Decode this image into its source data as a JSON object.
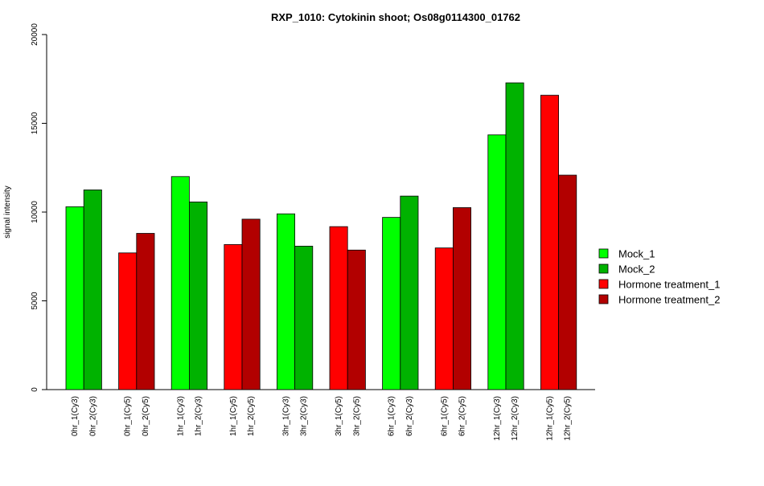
{
  "chart_data": {
    "type": "bar",
    "title": "RXP_1010: Cytokinin shoot; Os08g0114300_01762",
    "xlabel": "",
    "ylabel": "signal intensity",
    "ylim": [
      0,
      20000
    ],
    "yticks": [
      0,
      5000,
      10000,
      15000,
      20000
    ],
    "grid": false,
    "legend_position": "right",
    "legend": [
      {
        "label": "Mock_1",
        "color": "#00ff00"
      },
      {
        "label": "Mock_2",
        "color": "#00b200"
      },
      {
        "label": "Hormone treatment_1",
        "color": "#ff0000"
      },
      {
        "label": "Hormone treatment_2",
        "color": "#b20000"
      }
    ],
    "bars": [
      {
        "label": "0hr_1(Cy3)",
        "value": 10300,
        "color": "#00ff00"
      },
      {
        "label": "0hr_2(Cy3)",
        "value": 11250,
        "color": "#00b200"
      },
      {
        "label": "0hr_1(Cy5)",
        "value": 7700,
        "color": "#ff0000"
      },
      {
        "label": "0hr_2(Cy5)",
        "value": 8800,
        "color": "#b20000"
      },
      {
        "label": "1hr_1(Cy3)",
        "value": 12000,
        "color": "#00ff00"
      },
      {
        "label": "1hr_2(Cy3)",
        "value": 10570,
        "color": "#00b200"
      },
      {
        "label": "1hr_1(Cy5)",
        "value": 8170,
        "color": "#ff0000"
      },
      {
        "label": "1hr_2(Cy5)",
        "value": 9600,
        "color": "#b20000"
      },
      {
        "label": "3hr_1(Cy3)",
        "value": 9900,
        "color": "#00ff00"
      },
      {
        "label": "3hr_2(Cy3)",
        "value": 8080,
        "color": "#00b200"
      },
      {
        "label": "3hr_1(Cy5)",
        "value": 9180,
        "color": "#ff0000"
      },
      {
        "label": "3hr_2(Cy5)",
        "value": 7860,
        "color": "#b20000"
      },
      {
        "label": "6hr_1(Cy3)",
        "value": 9700,
        "color": "#00ff00"
      },
      {
        "label": "6hr_2(Cy3)",
        "value": 10900,
        "color": "#00b200"
      },
      {
        "label": "6hr_1(Cy5)",
        "value": 7980,
        "color": "#ff0000"
      },
      {
        "label": "6hr_2(Cy5)",
        "value": 10250,
        "color": "#b20000"
      },
      {
        "label": "12hr_1(Cy3)",
        "value": 14350,
        "color": "#00ff00"
      },
      {
        "label": "12hr_2(Cy3)",
        "value": 17280,
        "color": "#00b200"
      },
      {
        "label": "12hr_1(Cy5)",
        "value": 16580,
        "color": "#ff0000"
      },
      {
        "label": "12hr_2(Cy5)",
        "value": 12080,
        "color": "#b20000"
      }
    ]
  }
}
